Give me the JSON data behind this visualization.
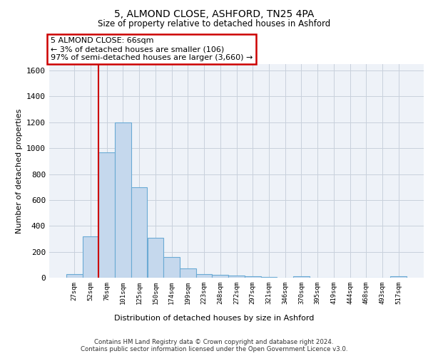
{
  "title_line1": "5, ALMOND CLOSE, ASHFORD, TN25 4PA",
  "title_line2": "Size of property relative to detached houses in Ashford",
  "xlabel": "Distribution of detached houses by size in Ashford",
  "ylabel": "Number of detached properties",
  "bar_labels": [
    "27sqm",
    "52sqm",
    "76sqm",
    "101sqm",
    "125sqm",
    "150sqm",
    "174sqm",
    "199sqm",
    "223sqm",
    "248sqm",
    "272sqm",
    "297sqm",
    "321sqm",
    "346sqm",
    "370sqm",
    "395sqm",
    "419sqm",
    "444sqm",
    "468sqm",
    "493sqm",
    "517sqm"
  ],
  "bar_values": [
    30,
    320,
    970,
    1200,
    700,
    310,
    160,
    70,
    30,
    20,
    15,
    10,
    5,
    0,
    10,
    0,
    0,
    0,
    0,
    0,
    10
  ],
  "bar_color": "#c5d8ed",
  "bar_edge_color": "#6aaad4",
  "ylim": [
    0,
    1650
  ],
  "yticks": [
    0,
    200,
    400,
    600,
    800,
    1000,
    1200,
    1400,
    1600
  ],
  "annotation_box_text": "5 ALMOND CLOSE: 66sqm\n← 3% of detached houses are smaller (106)\n97% of semi-detached houses are larger (3,660) →",
  "footer_text": "Contains HM Land Registry data © Crown copyright and database right 2024.\nContains public sector information licensed under the Open Government Licence v3.0.",
  "bg_color": "#ffffff",
  "grid_color": "#c8d0dc",
  "axes_bg": "#eef2f8"
}
